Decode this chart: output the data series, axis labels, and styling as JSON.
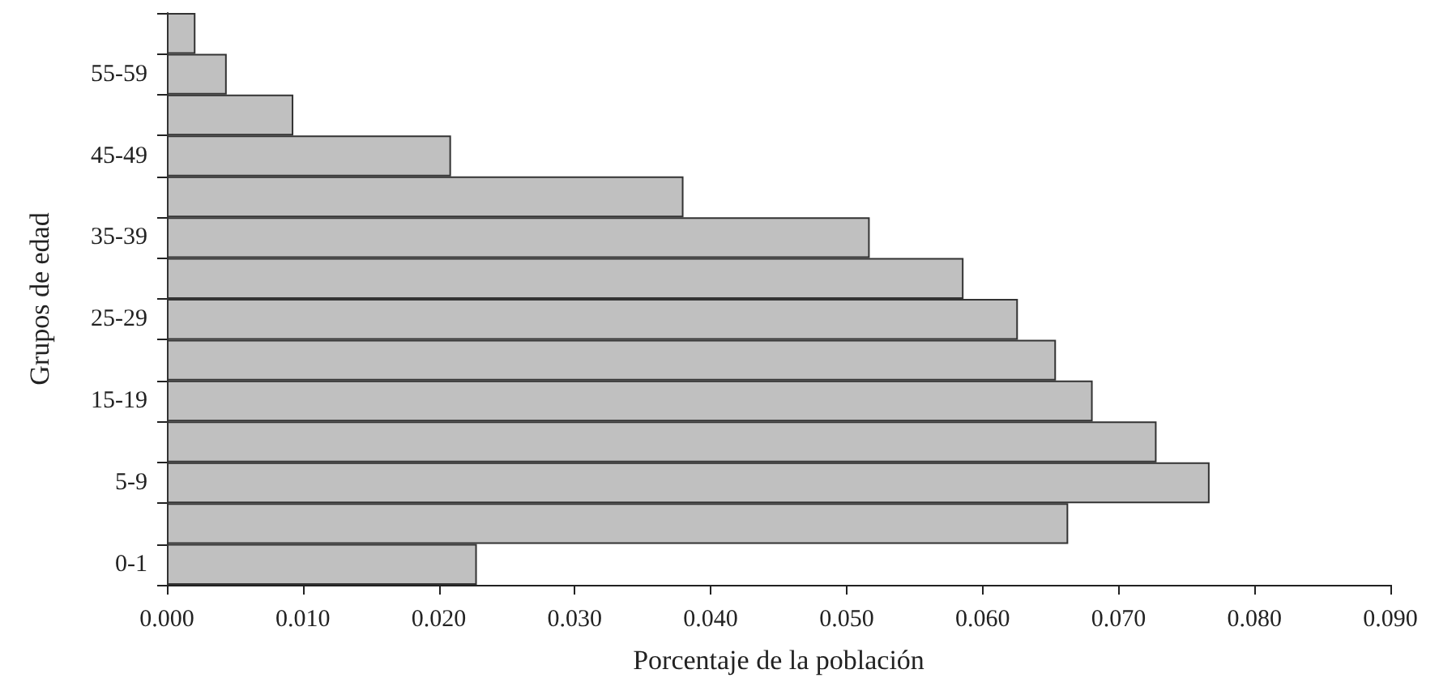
{
  "chart_data": {
    "type": "bar",
    "orientation": "horizontal",
    "xlabel": "Porcentaje de la población",
    "ylabel": "Grupos de edad",
    "categories": [
      null,
      "55-59",
      null,
      "45-49",
      null,
      "35-39",
      null,
      "25-29",
      null,
      "15-19",
      null,
      "5-9",
      null,
      "0-1"
    ],
    "values": [
      0.0021,
      0.0044,
      0.0093,
      0.0209,
      0.038,
      0.0517,
      0.0586,
      0.0626,
      0.0654,
      0.0681,
      0.0728,
      0.0767,
      0.0663,
      0.0228
    ],
    "color": "#c0c0c0",
    "xlim": [
      0,
      0.09
    ],
    "xticks": [
      {
        "value": 0,
        "label": "0.000"
      },
      {
        "value": 0.01,
        "label": "0.010"
      },
      {
        "value": 0.02,
        "label": "0.020"
      },
      {
        "value": 0.03,
        "label": "0.030"
      },
      {
        "value": 0.04,
        "label": "0.040"
      },
      {
        "value": 0.05,
        "label": "0.050"
      },
      {
        "value": 0.06,
        "label": "0.060"
      },
      {
        "value": 0.07,
        "label": "0.070"
      },
      {
        "value": 0.08,
        "label": "0.080"
      },
      {
        "value": 0.09,
        "label": "0.090"
      }
    ],
    "grid": false
  }
}
